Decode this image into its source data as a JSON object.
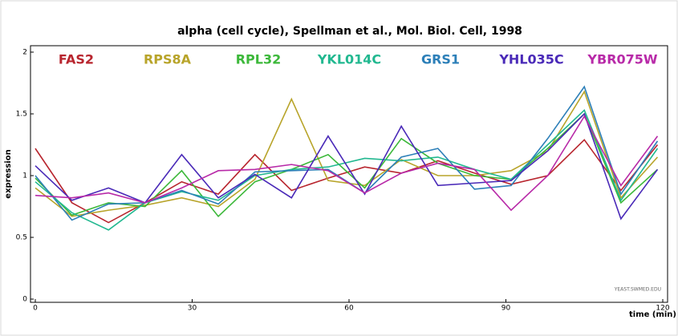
{
  "chart_data": {
    "type": "line",
    "title": "alpha (cell cycle), Spellman et al., Mol. Biol. Cell, 1998",
    "xlabel": "time (min)",
    "ylabel": "expression",
    "watermark": "YEAST.SWMED.EDU",
    "x": [
      0,
      7,
      14,
      21,
      28,
      35,
      42,
      49,
      56,
      63,
      70,
      77,
      84,
      91,
      98,
      105,
      112,
      119
    ],
    "xlim": [
      0,
      120
    ],
    "xticks": [
      0,
      30,
      60,
      90,
      120
    ],
    "ylim": [
      0,
      2
    ],
    "yticks": [
      0,
      0.5,
      1,
      1.5,
      2
    ],
    "series": [
      {
        "name": "FAS2",
        "color": "#b8252e",
        "values": [
          1.22,
          0.78,
          0.62,
          0.78,
          0.95,
          0.85,
          1.17,
          0.88,
          0.98,
          1.07,
          1.02,
          1.12,
          1.02,
          0.93,
          1.0,
          1.29,
          0.88,
          1.25
        ]
      },
      {
        "name": "RPS8A",
        "color": "#b8a42a",
        "values": [
          0.9,
          0.67,
          0.72,
          0.76,
          0.82,
          0.75,
          0.97,
          1.62,
          0.96,
          0.92,
          1.13,
          1.0,
          1.0,
          1.04,
          1.2,
          1.68,
          0.82,
          1.15
        ]
      },
      {
        "name": "RPL32",
        "color": "#3cb83a",
        "values": [
          0.98,
          0.68,
          0.78,
          0.75,
          1.04,
          0.67,
          0.95,
          1.05,
          1.17,
          0.9,
          1.3,
          1.1,
          1.0,
          0.97,
          1.22,
          1.5,
          0.78,
          1.05
        ]
      },
      {
        "name": "YKL014C",
        "color": "#22b890",
        "values": [
          0.95,
          0.7,
          0.56,
          0.78,
          0.87,
          0.8,
          1.0,
          1.05,
          1.07,
          1.14,
          1.12,
          1.15,
          1.05,
          0.97,
          1.25,
          1.53,
          0.8,
          1.22
        ]
      },
      {
        "name": "GRS1",
        "color": "#2c7fb8",
        "values": [
          1.0,
          0.64,
          0.77,
          0.78,
          0.88,
          0.77,
          1.03,
          1.04,
          1.05,
          0.86,
          1.15,
          1.22,
          0.89,
          0.92,
          1.3,
          1.72,
          0.85,
          1.28
        ]
      },
      {
        "name": "YHL035C",
        "color": "#4a2ab8",
        "values": [
          1.08,
          0.8,
          0.9,
          0.78,
          1.17,
          0.82,
          1.01,
          0.82,
          1.32,
          0.85,
          1.4,
          0.92,
          0.94,
          0.96,
          1.2,
          1.5,
          0.65,
          1.05
        ]
      },
      {
        "name": "YBR075W",
        "color": "#b82aa8",
        "values": [
          0.84,
          0.82,
          0.86,
          0.78,
          0.9,
          1.04,
          1.05,
          1.09,
          1.04,
          0.86,
          1.02,
          1.1,
          1.05,
          0.72,
          1.0,
          1.48,
          0.92,
          1.32
        ]
      }
    ]
  }
}
